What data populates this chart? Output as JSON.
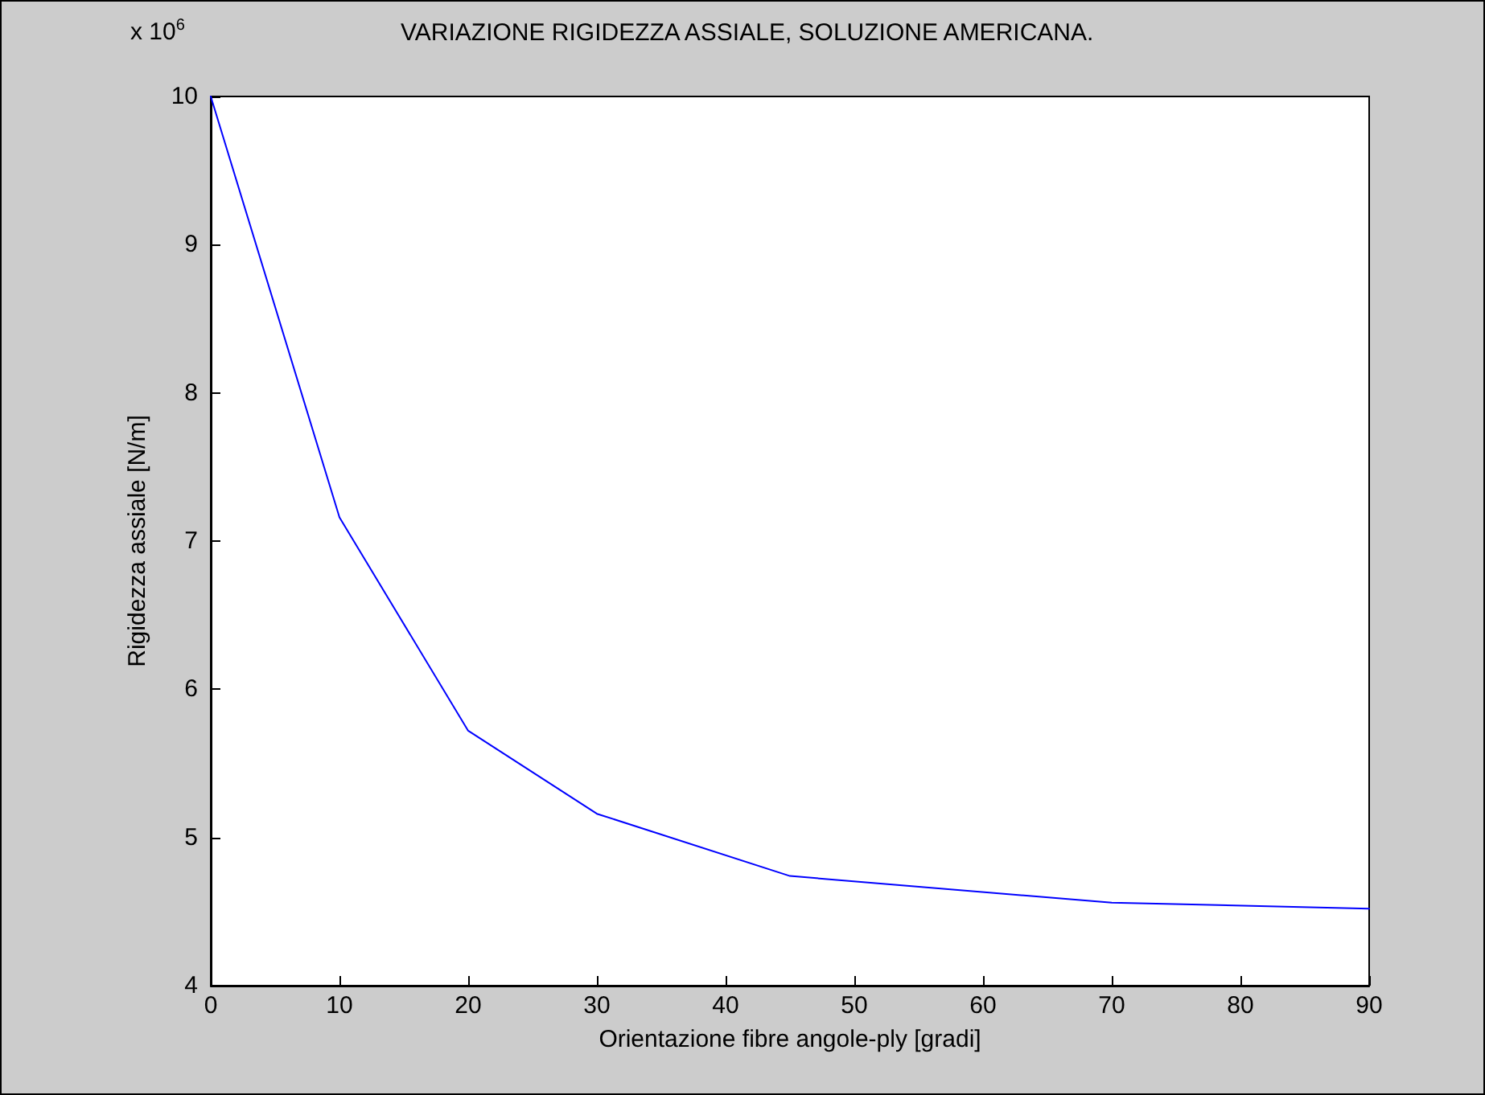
{
  "chart_data": {
    "type": "line",
    "title": "VARIAZIONE RIGIDEZZA ASSIALE, SOLUZIONE AMERICANA.",
    "xlabel": "Orientazione fibre angole-ply [gradi]",
    "ylabel": "Rigidezza assiale [N/m]",
    "annotations": [
      "x 10$^{6}$"
    ],
    "x": [
      0,
      10,
      20,
      30,
      45,
      70,
      90
    ],
    "series": [
      {
        "color": "#0000ff",
        "values": [
          10,
          7.16,
          5.72,
          5.16,
          4.74,
          4.56,
          4.52
        ]
      }
    ],
    "xlim": [
      0,
      90
    ],
    "xticks": [
      0,
      10,
      20,
      30,
      40,
      50,
      60,
      70,
      80,
      90
    ],
    "ylim": [
      4,
      10
    ],
    "yticks": [
      4,
      5,
      6,
      7,
      8,
      9,
      10
    ],
    "marker": "none",
    "line_style": "solid"
  }
}
